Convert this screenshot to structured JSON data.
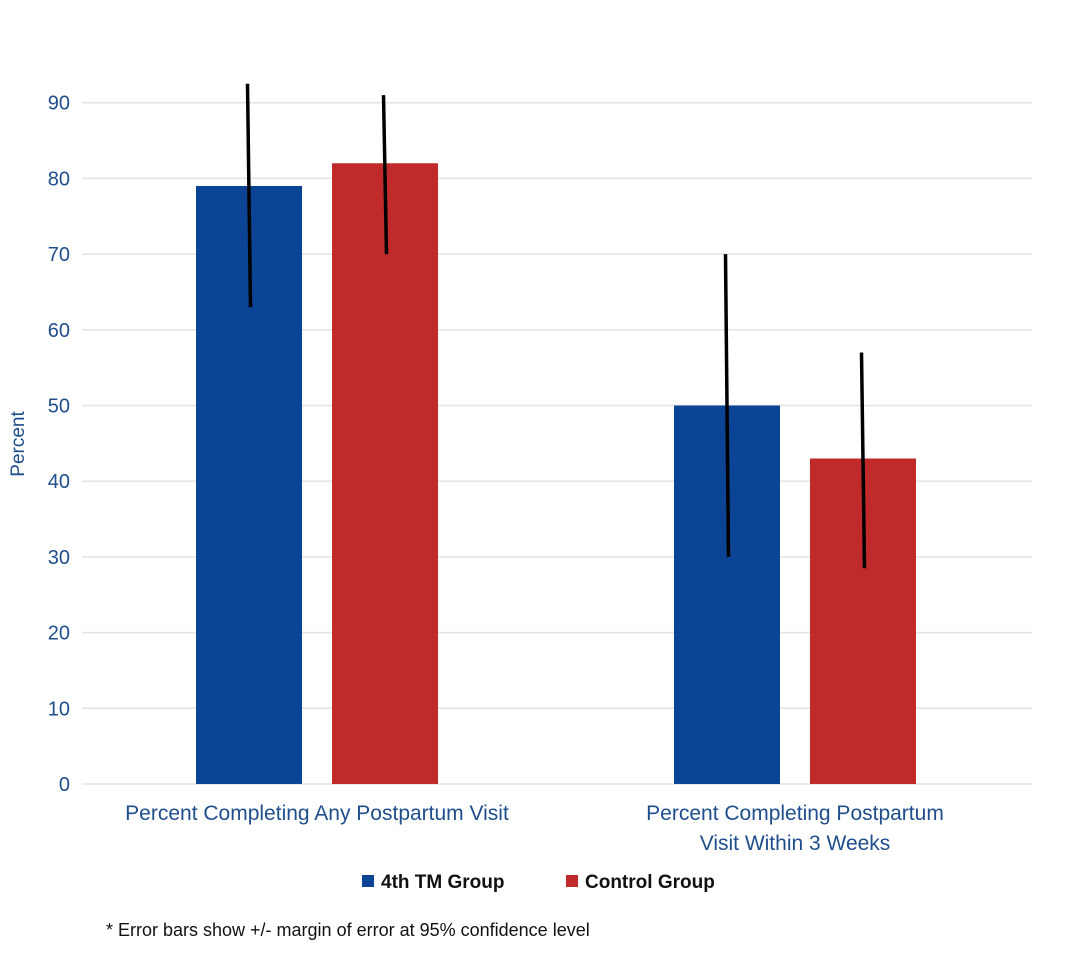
{
  "chart_data": {
    "type": "bar",
    "ylabel": "Percent",
    "ylim": [
      0,
      90
    ],
    "yticks": [
      0,
      10,
      20,
      30,
      40,
      50,
      60,
      70,
      80,
      90
    ],
    "grid": true,
    "legend_position": "bottom",
    "categories": [
      [
        "Percent Completing Any Postpartum Visit"
      ],
      [
        "Percent Completing Postpartum",
        "Visit Within 3 Weeks"
      ]
    ],
    "series": [
      {
        "name": "4th TM Group",
        "color": "#0b4494",
        "values": [
          79,
          50
        ],
        "error_low": [
          63,
          30
        ],
        "error_high": [
          92.5,
          70
        ]
      },
      {
        "name": "Control Group",
        "color": "#c02a2a",
        "values": [
          82,
          43
        ],
        "error_low": [
          70,
          28.5
        ],
        "error_high": [
          91,
          57
        ]
      }
    ],
    "footnote": "* Error bars show +/- margin of error at 95% confidence level"
  }
}
